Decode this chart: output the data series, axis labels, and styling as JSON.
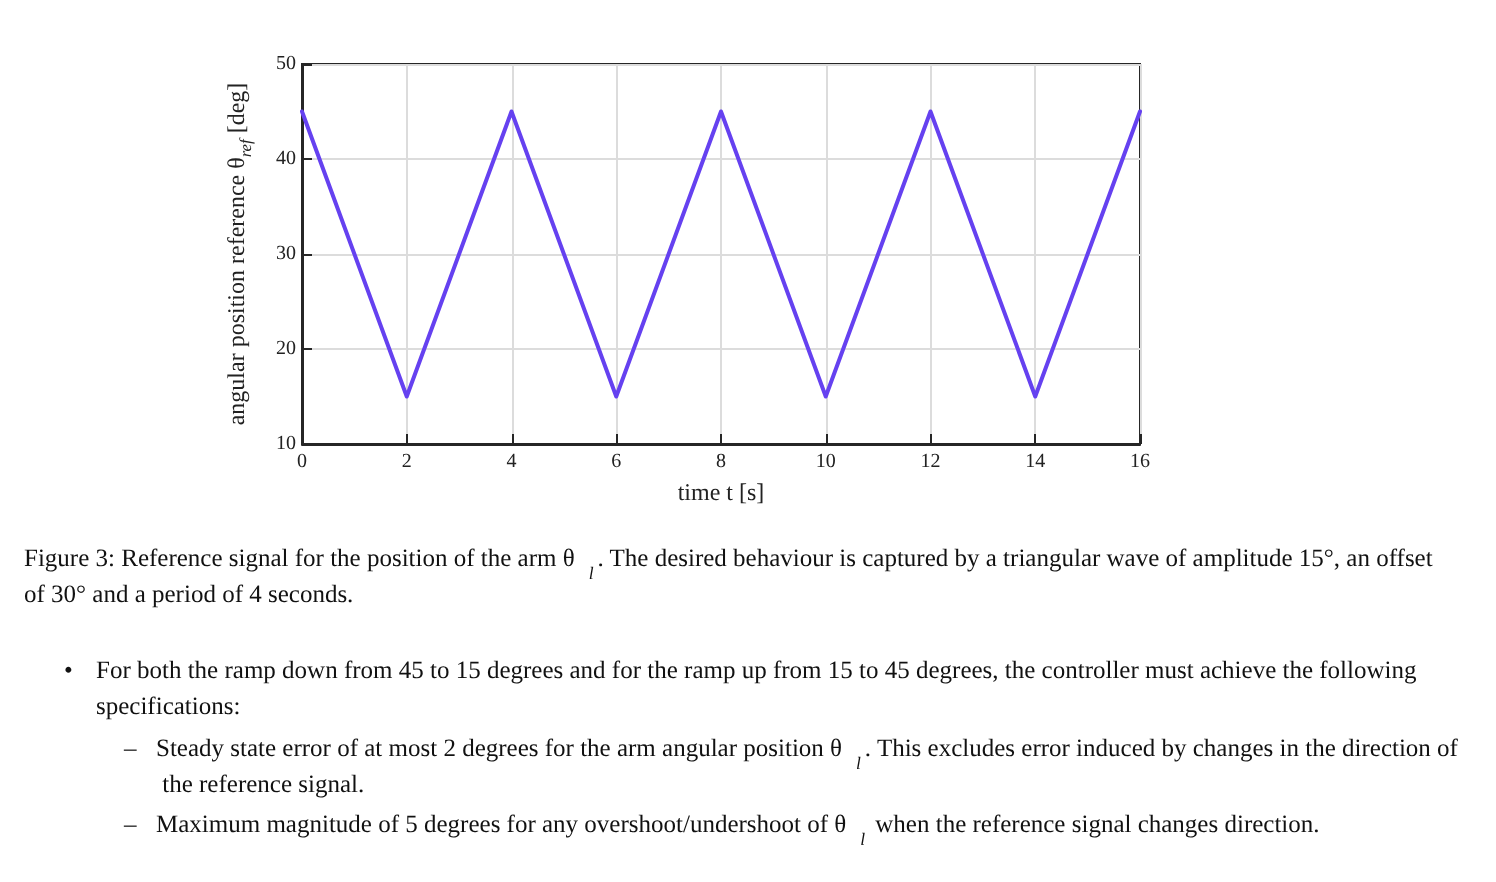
{
  "chart_data": {
    "type": "line",
    "xlabel": "time t [s]",
    "ylabel": "angular position reference θ$_{ref}$ [deg]",
    "x": [
      0,
      2,
      4,
      6,
      8,
      10,
      12,
      14,
      16
    ],
    "series": [
      {
        "color": "#6541f0",
        "values": [
          45,
          15,
          45,
          15,
          45,
          15,
          45,
          15,
          45
        ]
      }
    ],
    "xlim": [
      0,
      16
    ],
    "xticks": [
      0,
      2,
      4,
      6,
      8,
      10,
      12,
      14,
      16
    ],
    "ylim": [
      10,
      50
    ],
    "yticks": [
      10,
      20,
      30,
      40,
      50
    ],
    "grid": true,
    "marker": "none",
    "line_style": "solid",
    "annotations": [
      "Figure 3: Reference signal for the position of the arm θ$_{l}$. The desired behaviour is captured by a triangular wave of amplitude 15°, an offset of 30° and a period of 4 seconds.",
      "• For both the ramp down from 45 to 15 degrees and for the ramp up from 15 to 45 degrees, the controller must achieve the following specifications:",
      "– Steady state error of at most 2 degrees for the arm angular position θ$_{l}$. This excludes error induced by changes in the direction of the reference signal.",
      "– Maximum magnitude of 5 degrees for any overshoot/undershoot of θ$_{l}$ when the reference signal changes direction."
    ]
  }
}
